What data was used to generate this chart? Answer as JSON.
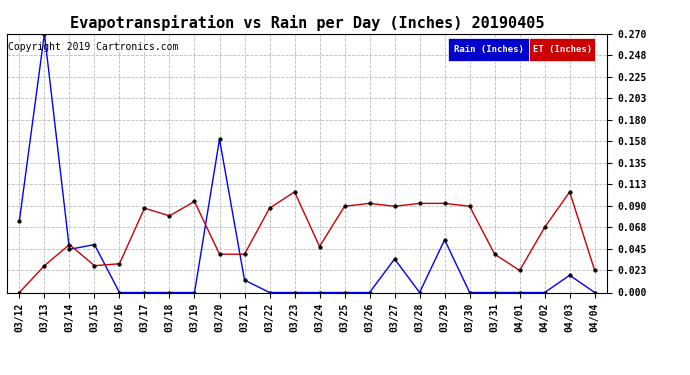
{
  "title": "Evapotranspiration vs Rain per Day (Inches) 20190405",
  "copyright": "Copyright 2019 Cartronics.com",
  "x_labels": [
    "03/12",
    "03/13",
    "03/14",
    "03/15",
    "03/16",
    "03/17",
    "03/18",
    "03/19",
    "03/20",
    "03/21",
    "03/22",
    "03/23",
    "03/24",
    "03/25",
    "03/26",
    "03/27",
    "03/28",
    "03/29",
    "03/30",
    "03/31",
    "04/01",
    "04/02",
    "04/03",
    "04/04"
  ],
  "rain": [
    0.075,
    0.27,
    0.045,
    0.05,
    0.0,
    0.0,
    0.0,
    0.0,
    0.16,
    0.013,
    0.0,
    0.0,
    0.0,
    0.0,
    0.0,
    0.035,
    0.0,
    0.055,
    0.0,
    0.0,
    0.0,
    0.0,
    0.018,
    0.0
  ],
  "et": [
    0.0,
    0.028,
    0.05,
    0.028,
    0.03,
    0.088,
    0.08,
    0.095,
    0.04,
    0.04,
    0.088,
    0.105,
    0.048,
    0.09,
    0.093,
    0.09,
    0.093,
    0.093,
    0.09,
    0.04,
    0.023,
    0.068,
    0.105,
    0.023
  ],
  "rain_color": "#0000ff",
  "et_color": "#cc0000",
  "ylim": [
    0.0,
    0.27
  ],
  "yticks": [
    0.0,
    0.023,
    0.045,
    0.068,
    0.09,
    0.113,
    0.135,
    0.158,
    0.18,
    0.203,
    0.225,
    0.248,
    0.27
  ],
  "grid_color": "#bbbbbb",
  "background_color": "#ffffff",
  "legend_rain_bg": "#0000cc",
  "legend_et_bg": "#cc0000",
  "title_fontsize": 11,
  "tick_fontsize": 7,
  "copyright_fontsize": 7,
  "marker_size": 2.5
}
